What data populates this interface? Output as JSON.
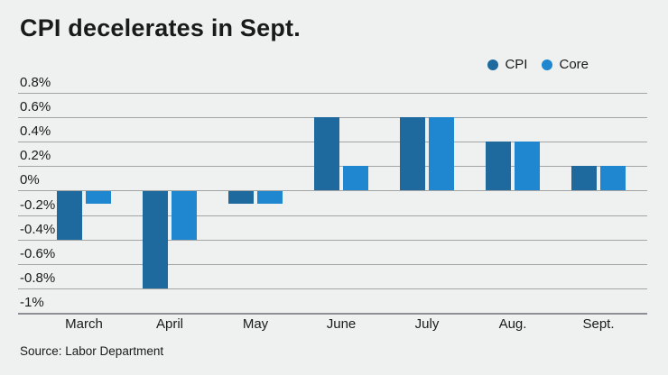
{
  "source_note": "Source: Labor Department",
  "chart_data": {
    "type": "bar",
    "title": "CPI decelerates in Sept.",
    "categories": [
      "March",
      "April",
      "May",
      "June",
      "July",
      "Aug.",
      "Sept."
    ],
    "series": [
      {
        "name": "CPI",
        "color": "#1e6a9e",
        "values": [
          -0.4,
          -0.8,
          -0.1,
          0.6,
          0.6,
          0.4,
          0.2
        ]
      },
      {
        "name": "Core",
        "color": "#1e87cf",
        "values": [
          -0.1,
          -0.4,
          -0.1,
          0.2,
          0.6,
          0.4,
          0.2
        ]
      }
    ],
    "xlabel": "",
    "ylabel": "",
    "ylim": [
      -1.0,
      0.8
    ],
    "ytick_step": 0.2,
    "ytick_labels": [
      "0.8%",
      "0.6%",
      "0.4%",
      "0.2%",
      "0%",
      "-0.2%",
      "-0.4%",
      "-0.6%",
      "-0.8%",
      "-1%"
    ],
    "grid": true,
    "legend_position": "top-right",
    "unit": "percent-monthly-change"
  },
  "colors": {
    "background": "#eff0f0",
    "text": "#1a1a1a",
    "gridline": "#a2a4a6",
    "baseline": "#8d8f92",
    "cpi_series": "#1e6a9e",
    "core_series": "#1e87cf"
  }
}
